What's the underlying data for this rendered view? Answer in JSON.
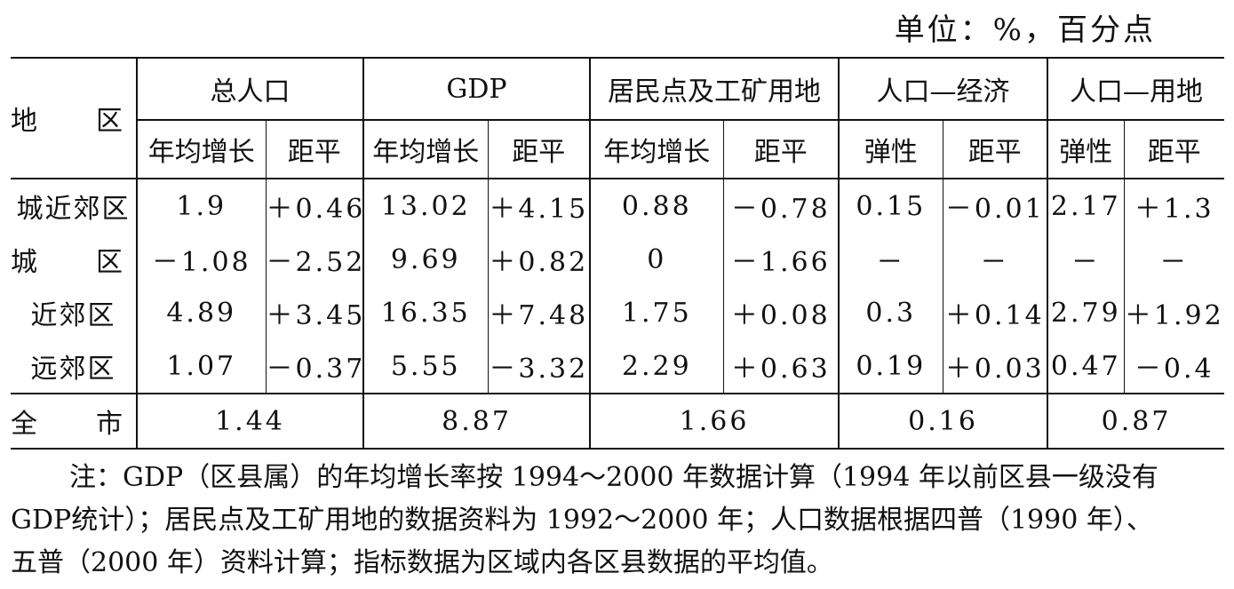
{
  "unit_label": "单位：%，百分点",
  "header": {
    "region": "地　区",
    "groups": [
      "总人口",
      "GDP",
      "居民点及工矿用地",
      "人口—经济",
      "人口—用地"
    ],
    "subheaders": [
      "年均增长",
      "距平",
      "年均增长",
      "距平",
      "年均增长",
      "距平",
      "弹性",
      "距平",
      "弹性",
      "距平"
    ]
  },
  "rows": [
    {
      "region": "城近郊区",
      "cells": [
        "1.9",
        "＋0.46",
        "13.02",
        "＋4.15",
        "0.88",
        "－0.78",
        "0.15",
        "－0.01",
        "2.17",
        "＋1.3"
      ]
    },
    {
      "region": "城　区",
      "cells": [
        "－1.08",
        "－2.52",
        "9.69",
        "＋0.82",
        "0",
        "－1.66",
        "－",
        "－",
        "－",
        "－"
      ]
    },
    {
      "region": "近郊区",
      "cells": [
        "4.89",
        "＋3.45",
        "16.35",
        "＋7.48",
        "1.75",
        "＋0.08",
        "0.3",
        "＋0.14",
        "2.79",
        "＋1.92"
      ]
    },
    {
      "region": "远郊区",
      "cells": [
        "1.07",
        "－0.37",
        "5.55",
        "－3.32",
        "2.29",
        "＋0.63",
        "0.19",
        "＋0.03",
        "0.47",
        "－0.4"
      ]
    }
  ],
  "total": {
    "region": "全　市",
    "values": [
      "1.44",
      "8.87",
      "1.66",
      "0.16",
      "0.87"
    ]
  },
  "note": {
    "line1": "注：GDP（区县属）的年均增长率按 1994～2000 年数据计算（1994 年以前区县一级没有",
    "line2": "GDP统计）；居民点及工矿用地的数据资料为 1992～2000 年；人口数据根据四普（1990 年）、",
    "line3": "五普（2000 年）资料计算；指标数据为区域内各区县数据的平均值。"
  }
}
